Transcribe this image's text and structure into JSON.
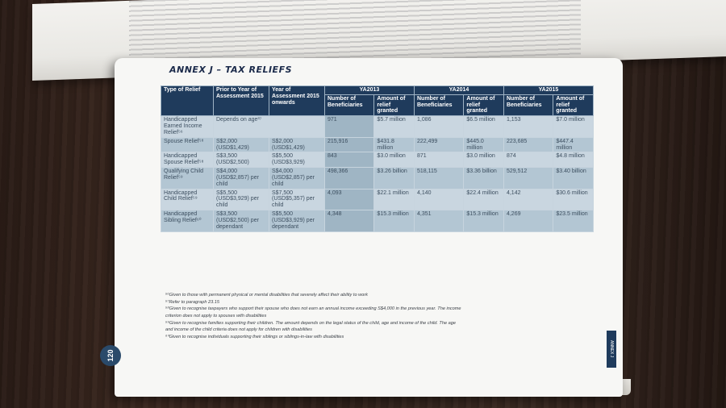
{
  "annex_title": "ANNEX J – TAX RELIEFS",
  "page_number": "120",
  "side_tab": "ANNEX J",
  "table": {
    "headers": {
      "type": "Type of Relief",
      "prior": "Prior to Year of Assessment 2015",
      "onwards": "Year of Assessment 2015 onwards",
      "years": [
        "YA2013",
        "YA2014",
        "YA2015"
      ],
      "num_beneficiaries": "Number of Beneficiaries",
      "amount_granted": "Amount of relief granted"
    },
    "rows": [
      {
        "type": "Handicapped Earned Income Relief⁵⁶",
        "prior": "Depends on age³⁷",
        "onwards": "",
        "b2013": "971",
        "a2013": "$5.7 million",
        "b2014": "1,086",
        "a2014": "$6.5 million",
        "b2015": "1,153",
        "a2015": "$7.0 million"
      },
      {
        "type": "Spouse Relief⁵⁸",
        "prior": "S$2,000 (USD$1,429)",
        "onwards": "S$2,000 (USD$1,429)",
        "b2013": "215,916",
        "a2013": "$431.8 million",
        "b2014": "222,499",
        "a2014": "$445.0 million",
        "b2015": "223,685",
        "a2015": "$447.4 million"
      },
      {
        "type": "Handicapped Spouse Relief⁵⁸",
        "prior": "S$3,500 (USD$2,500)",
        "onwards": "S$5,500 (USD$3,929)",
        "b2013": "843",
        "a2013": "$3.0 million",
        "b2014": "871",
        "a2014": "$3.0 million",
        "b2015": "874",
        "a2015": "$4.8 million"
      },
      {
        "type": "Qualifying Child Relief⁵⁹",
        "prior": "S$4,000 (USD$2,857) per child",
        "onwards": "S$4,000 (USD$2,857) per child",
        "b2013": "498,366",
        "a2013": "$3.26 billion",
        "b2014": "518,115",
        "a2014": "$3.36 billion",
        "b2015": "529,512",
        "a2015": "$3.40 billion"
      },
      {
        "type": "Handicapped Child Relief⁵⁹",
        "prior": "S$5,500 (USD$3,929) per child",
        "onwards": "S$7,500 (USD$5,357) per child",
        "b2013": "4,093",
        "a2013": "$22.1 million",
        "b2014": "4,140",
        "a2014": "$22.4 million",
        "b2015": "4,142",
        "a2015": "$30.6 million"
      },
      {
        "type": "Handicapped Sibling Relief⁶⁰",
        "prior": "S$3,500 (USD$2,500) per dependant",
        "onwards": "S$5,500 (USD$3,929) per dependant",
        "b2013": "4,348",
        "a2013": "$15.3 million",
        "b2014": "4,351",
        "a2014": "$15.3 million",
        "b2015": "4,269",
        "a2015": "$23.5 million"
      }
    ]
  },
  "footnotes": [
    "⁵⁶Given to those with permanent physical or mental disabilities that severely affect their ability to work",
    "⁵⁷Refer to paragraph 23.15",
    "⁵⁸Given to recognise taxpayers who support their spouse who does not earn an annual income exceeding S$4,000 in the previous year. The income",
    "criterion does not apply to spouses with disabilities",
    "⁵⁹Given to recognise families supporting their children. The amount depends on the legal status of the child, age and income of the child. The age",
    "and income of the child criteria does not apply for children with disabilities",
    "⁶⁰Given to recognise individuals supporting their siblings or siblings-in-law with disabilities"
  ]
}
